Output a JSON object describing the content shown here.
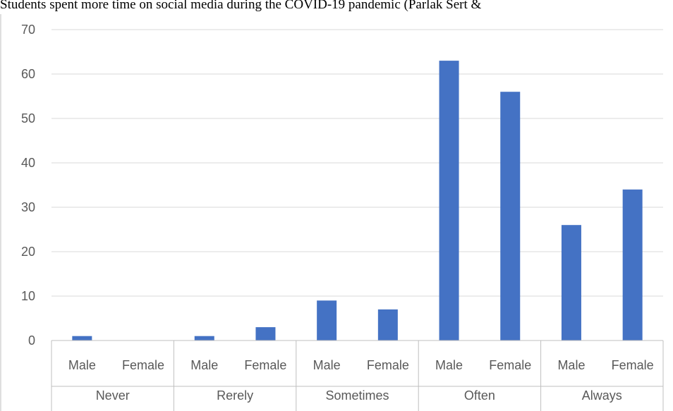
{
  "caption": "Students spent more time on social media during the COVID-19 pandemic (Parlak Sert &",
  "chart_data": {
    "type": "bar",
    "title": "",
    "xlabel": "",
    "ylabel": "",
    "ylim": [
      0,
      70
    ],
    "yticks": [
      0,
      10,
      20,
      30,
      40,
      50,
      60,
      70
    ],
    "grid": true,
    "legend": "none",
    "bar_color": "#4472C4",
    "groups": [
      {
        "label": "Never",
        "categories": [
          "Male",
          "Female"
        ],
        "values": [
          1,
          0
        ]
      },
      {
        "label": "Rerely",
        "categories": [
          "Male",
          "Female"
        ],
        "values": [
          1,
          3
        ]
      },
      {
        "label": "Sometimes",
        "categories": [
          "Male",
          "Female"
        ],
        "values": [
          9,
          7
        ]
      },
      {
        "label": "Often",
        "categories": [
          "Male",
          "Female"
        ],
        "values": [
          63,
          56
        ]
      },
      {
        "label": "Always",
        "categories": [
          "Male",
          "Female"
        ],
        "values": [
          26,
          34
        ]
      }
    ]
  }
}
